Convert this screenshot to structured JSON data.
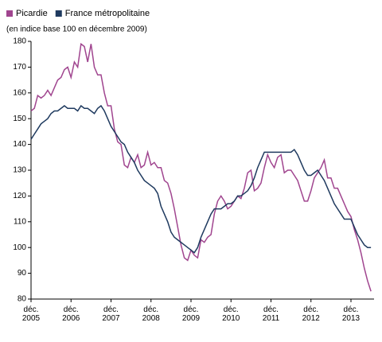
{
  "chart_data": {
    "type": "line",
    "subtitle": "(en indice base 100 en décembre 2009)",
    "categories": [
      "déc. 2005",
      null,
      null,
      null,
      null,
      null,
      null,
      null,
      null,
      null,
      null,
      null,
      "déc. 2006",
      null,
      null,
      null,
      null,
      null,
      null,
      null,
      null,
      null,
      null,
      null,
      "déc. 2007",
      null,
      null,
      null,
      null,
      null,
      null,
      null,
      null,
      null,
      null,
      null,
      "déc. 2008",
      null,
      null,
      null,
      null,
      null,
      null,
      null,
      null,
      null,
      null,
      null,
      "déc. 2009",
      null,
      null,
      null,
      null,
      null,
      null,
      null,
      null,
      null,
      null,
      null,
      "déc. 2010",
      null,
      null,
      null,
      null,
      null,
      null,
      null,
      null,
      null,
      null,
      null,
      "déc. 2011",
      null,
      null,
      null,
      null,
      null,
      null,
      null,
      null,
      null,
      null,
      null,
      "déc. 2012",
      null,
      null,
      null,
      null,
      null,
      null,
      null,
      null,
      null,
      null,
      null,
      "déc. 2013",
      null,
      null,
      null,
      null,
      null,
      null
    ],
    "series": [
      {
        "name": "Picardie",
        "color": "#a0458f",
        "values": [
          153,
          154,
          159,
          158,
          159,
          161,
          159,
          162,
          165,
          166,
          169,
          170,
          166,
          172,
          170,
          179,
          178,
          172,
          179,
          170,
          167,
          167,
          160,
          155,
          155,
          146,
          141,
          140,
          132,
          131,
          135,
          133,
          136,
          131,
          132,
          137,
          132,
          133,
          131,
          131,
          126,
          125,
          121,
          115,
          108,
          101,
          96,
          95,
          99,
          97,
          96,
          103,
          102,
          104,
          105,
          113,
          118,
          120,
          118,
          115,
          116,
          118,
          120,
          119,
          123,
          129,
          130,
          122,
          123,
          125,
          131,
          136,
          133,
          131,
          135,
          136,
          129,
          130,
          130,
          128,
          126,
          122,
          118,
          118,
          122,
          127,
          129,
          131,
          134,
          127,
          127,
          123,
          123,
          120,
          117,
          114,
          112,
          107,
          103,
          98,
          92,
          87,
          83
        ]
      },
      {
        "name": "France métropolitaine",
        "color": "#1f3a5f",
        "values": [
          142,
          144,
          146,
          148,
          149,
          150,
          152,
          153,
          153,
          154,
          155,
          154,
          154,
          154,
          153,
          155,
          154,
          154,
          153,
          152,
          154,
          155,
          153,
          150,
          147,
          145,
          143,
          141,
          140,
          137,
          135,
          133,
          130,
          128,
          126,
          125,
          124,
          123,
          121,
          116,
          113,
          110,
          106,
          104,
          103,
          102,
          101,
          100,
          99,
          98,
          100,
          104,
          107,
          110,
          113,
          115,
          115,
          115,
          116,
          117,
          117,
          118,
          120,
          120,
          121,
          122,
          124,
          127,
          131,
          134,
          137,
          137,
          137,
          137,
          137,
          137,
          137,
          137,
          137,
          138,
          136,
          133,
          130,
          128,
          128,
          129,
          130,
          128,
          126,
          123,
          120,
          117,
          115,
          113,
          111,
          111,
          111,
          108,
          105,
          103,
          101,
          100,
          100
        ]
      }
    ],
    "ylim": [
      80,
      180
    ],
    "yticks": [
      80,
      90,
      100,
      110,
      120,
      130,
      140,
      150,
      160,
      170,
      180
    ],
    "grid": false,
    "legend": "top-left"
  }
}
